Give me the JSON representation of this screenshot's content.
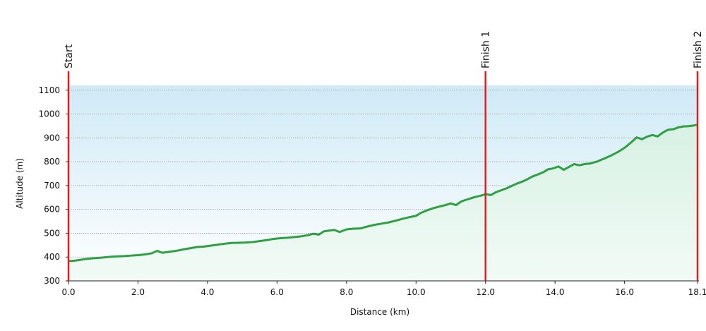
{
  "chart_data": {
    "type": "area",
    "title": "",
    "xlabel": "Distance (km)",
    "ylabel": "Altitude (m)",
    "xlim": [
      0,
      18.1
    ],
    "ylim": [
      300,
      1120
    ],
    "grid": true,
    "x_ticks": [
      "0.0",
      "2.0",
      "4.0",
      "6.0",
      "8.0",
      "10.0",
      "12.0",
      "14.0",
      "16.0",
      "18.1"
    ],
    "x_tick_values": [
      0,
      2,
      4,
      6,
      8,
      10,
      12,
      14,
      16,
      18.1
    ],
    "y_ticks": [
      "300",
      "400",
      "500",
      "600",
      "700",
      "800",
      "900",
      "1000",
      "1100"
    ],
    "y_tick_values": [
      300,
      400,
      500,
      600,
      700,
      800,
      900,
      1000,
      1100
    ],
    "markers": [
      {
        "label": "Start",
        "x": 0
      },
      {
        "label": "Finish 1",
        "x": 12.0
      },
      {
        "label": "Finish 2",
        "x": 18.1
      }
    ],
    "colors": {
      "line": "#2ea043",
      "marker": "#e02020",
      "area_top": "#cfeaf6",
      "area_bottom": "#ffffff",
      "fill_top": "#d7f1e3",
      "fill_bottom": "#f2fbf6",
      "grid": "#9a9a9a"
    },
    "series": [
      {
        "x": [
          0,
          0.2,
          0.5,
          0.8,
          1.0,
          1.2,
          1.4,
          1.6,
          1.8,
          2.0,
          2.2,
          2.4,
          2.55,
          2.7,
          2.9,
          3.1,
          3.3,
          3.5,
          3.7,
          3.9,
          4.1,
          4.3,
          4.5,
          4.7,
          4.9,
          5.1,
          5.3,
          5.5,
          5.7,
          5.9,
          6.1,
          6.3,
          6.5,
          6.7,
          6.9,
          7.05,
          7.2,
          7.35,
          7.5,
          7.65,
          7.8,
          8.0,
          8.2,
          8.4,
          8.6,
          8.8,
          9.0,
          9.2,
          9.4,
          9.6,
          9.8,
          10.0,
          10.15,
          10.3,
          10.5,
          10.7,
          10.85,
          11.0,
          11.15,
          11.3,
          11.5,
          11.7,
          11.85,
          12.0,
          12.15,
          12.3,
          12.45,
          12.6,
          12.75,
          12.9,
          13.05,
          13.2,
          13.35,
          13.5,
          13.65,
          13.8,
          13.95,
          14.1,
          14.25,
          14.4,
          14.55,
          14.7,
          14.85,
          15.0,
          15.2,
          15.4,
          15.6,
          15.8,
          16.0,
          16.2,
          16.35,
          16.5,
          16.65,
          16.8,
          16.95,
          17.1,
          17.25,
          17.4,
          17.55,
          17.7,
          17.85,
          18.0,
          18.1
        ],
        "y": [
          383,
          385,
          392,
          396,
          398,
          401,
          403,
          404,
          406,
          408,
          411,
          416,
          426,
          418,
          422,
          426,
          432,
          437,
          442,
          444,
          448,
          452,
          456,
          459,
          460,
          461,
          463,
          467,
          471,
          476,
          479,
          481,
          484,
          487,
          492,
          498,
          494,
          508,
          511,
          514,
          505,
          516,
          519,
          520,
          528,
          535,
          540,
          545,
          552,
          560,
          567,
          573,
          586,
          595,
          605,
          613,
          618,
          625,
          618,
          633,
          643,
          652,
          657,
          664,
          660,
          672,
          680,
          688,
          698,
          708,
          716,
          726,
          738,
          746,
          755,
          768,
          772,
          780,
          766,
          778,
          790,
          785,
          790,
          792,
          800,
          812,
          825,
          840,
          858,
          882,
          902,
          894,
          905,
          912,
          906,
          922,
          934,
          936,
          944,
          948,
          949,
          952,
          955
        ]
      }
    ]
  }
}
